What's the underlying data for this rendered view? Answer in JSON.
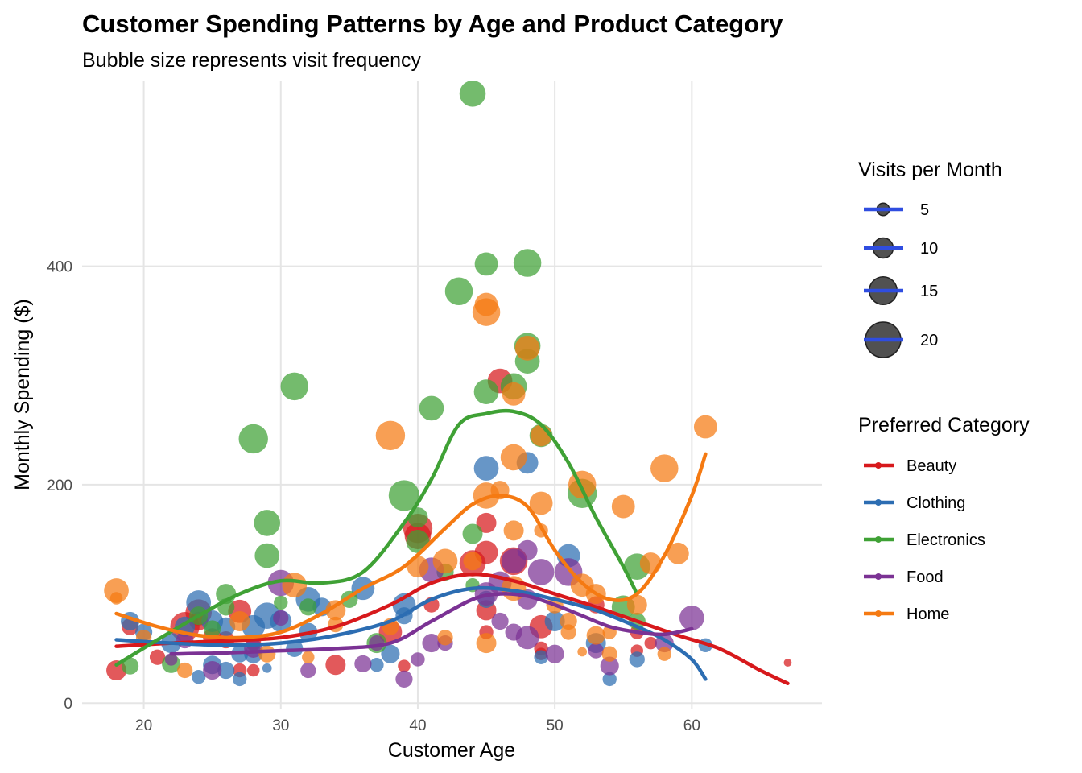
{
  "chart_data": {
    "type": "scatter",
    "title": "Customer Spending Patterns by Age and Product Category",
    "subtitle": "Bubble size represents visit frequency",
    "xlabel": "Customer Age",
    "ylabel": "Monthly Spending ($)",
    "xlim": [
      15.5,
      69.5
    ],
    "ylim": [
      -5,
      570
    ],
    "x_ticks": [
      20,
      30,
      40,
      50,
      60
    ],
    "y_ticks": [
      0,
      200,
      400
    ],
    "grid": true,
    "legend_position": "right",
    "size_legend": {
      "title": "Visits per Month",
      "entries": [
        {
          "label": "5",
          "value": 5
        },
        {
          "label": "10",
          "value": 10
        },
        {
          "label": "15",
          "value": 15
        },
        {
          "label": "20",
          "value": 20
        }
      ],
      "line_color": "#2f4de0"
    },
    "color_legend": {
      "title": "Preferred Category",
      "entries": [
        {
          "label": "Beauty",
          "color": "#d7191c"
        },
        {
          "label": "Clothing",
          "color": "#2c6db2"
        },
        {
          "label": "Electronics",
          "color": "#3fa135"
        },
        {
          "label": "Food",
          "color": "#7b3294"
        },
        {
          "label": "Home",
          "color": "#f57a12"
        }
      ]
    },
    "series": [
      {
        "name": "Beauty",
        "color": "#d7191c",
        "points": [
          [
            18,
            30,
            10
          ],
          [
            19,
            70,
            8
          ],
          [
            21,
            42,
            7
          ],
          [
            23,
            70,
            16
          ],
          [
            24,
            83,
            14
          ],
          [
            24,
            75,
            9
          ],
          [
            25,
            60,
            9
          ],
          [
            26,
            58,
            8
          ],
          [
            27,
            84,
            12
          ],
          [
            27,
            30,
            6
          ],
          [
            28,
            30,
            5
          ],
          [
            28,
            55,
            7
          ],
          [
            34,
            35,
            10
          ],
          [
            38,
            65,
            12
          ],
          [
            39,
            34,
            5
          ],
          [
            40,
            160,
            16
          ],
          [
            40,
            153,
            14
          ],
          [
            41,
            90,
            7
          ],
          [
            44,
            128,
            14
          ],
          [
            45,
            165,
            10
          ],
          [
            45,
            138,
            12
          ],
          [
            45,
            85,
            10
          ],
          [
            45,
            65,
            6
          ],
          [
            46,
            295,
            13
          ],
          [
            47,
            130,
            15
          ],
          [
            49,
            50,
            6
          ],
          [
            49,
            70,
            12
          ],
          [
            49,
            45,
            5
          ],
          [
            53,
            90,
            8
          ],
          [
            56,
            65,
            6
          ],
          [
            56,
            48,
            5
          ],
          [
            57,
            55,
            5
          ],
          [
            67,
            37,
            2
          ]
        ],
        "trend": [
          [
            18,
            52
          ],
          [
            22,
            55
          ],
          [
            26,
            57
          ],
          [
            30,
            60
          ],
          [
            34,
            70
          ],
          [
            38,
            90
          ],
          [
            41,
            110
          ],
          [
            44,
            118
          ],
          [
            47,
            112
          ],
          [
            50,
            100
          ],
          [
            53,
            88
          ],
          [
            56,
            75
          ],
          [
            59,
            62
          ],
          [
            62,
            50
          ],
          [
            65,
            30
          ],
          [
            67,
            18
          ]
        ]
      },
      {
        "name": "Clothing",
        "color": "#2c6db2",
        "points": [
          [
            19,
            75,
            9
          ],
          [
            20,
            65,
            8
          ],
          [
            22,
            55,
            10
          ],
          [
            23,
            70,
            10
          ],
          [
            24,
            92,
            13
          ],
          [
            24,
            24,
            6
          ],
          [
            25,
            75,
            11
          ],
          [
            25,
            35,
            9
          ],
          [
            26,
            30,
            8
          ],
          [
            26,
            70,
            9
          ],
          [
            27,
            22,
            6
          ],
          [
            27,
            45,
            8
          ],
          [
            28,
            45,
            9
          ],
          [
            28,
            70,
            12
          ],
          [
            29,
            80,
            14
          ],
          [
            29,
            32,
            3
          ],
          [
            30,
            75,
            11
          ],
          [
            31,
            50,
            8
          ],
          [
            32,
            95,
            13
          ],
          [
            32,
            65,
            9
          ],
          [
            33,
            88,
            9
          ],
          [
            36,
            105,
            12
          ],
          [
            37,
            35,
            6
          ],
          [
            38,
            45,
            9
          ],
          [
            39,
            90,
            12
          ],
          [
            39,
            80,
            8
          ],
          [
            45,
            215,
            13
          ],
          [
            45,
            95,
            8
          ],
          [
            48,
            220,
            11
          ],
          [
            49,
            42,
            6
          ],
          [
            50,
            75,
            10
          ],
          [
            51,
            135,
            12
          ],
          [
            53,
            55,
            10
          ],
          [
            54,
            22,
            6
          ],
          [
            56,
            40,
            7
          ],
          [
            61,
            53,
            6
          ]
        ],
        "trend": [
          [
            18,
            58
          ],
          [
            22,
            55
          ],
          [
            26,
            53
          ],
          [
            30,
            55
          ],
          [
            34,
            62
          ],
          [
            38,
            75
          ],
          [
            41,
            95
          ],
          [
            44,
            105
          ],
          [
            47,
            103
          ],
          [
            50,
            95
          ],
          [
            53,
            85
          ],
          [
            56,
            70
          ],
          [
            58,
            58
          ],
          [
            60,
            40
          ],
          [
            61,
            22
          ]
        ]
      },
      {
        "name": "Electronics",
        "color": "#3fa135",
        "points": [
          [
            19,
            34,
            8
          ],
          [
            22,
            36,
            9
          ],
          [
            24,
            80,
            9
          ],
          [
            25,
            68,
            8
          ],
          [
            26,
            100,
            10
          ],
          [
            26,
            88,
            8
          ],
          [
            28,
            242,
            16
          ],
          [
            29,
            165,
            14
          ],
          [
            29,
            135,
            13
          ],
          [
            30,
            92,
            6
          ],
          [
            31,
            290,
            15
          ],
          [
            32,
            88,
            8
          ],
          [
            35,
            95,
            8
          ],
          [
            37,
            55,
            10
          ],
          [
            39,
            190,
            17
          ],
          [
            40,
            170,
            10
          ],
          [
            40,
            148,
            12
          ],
          [
            41,
            270,
            13
          ],
          [
            42,
            120,
            8
          ],
          [
            43,
            377,
            15
          ],
          [
            44,
            155,
            10
          ],
          [
            44,
            108,
            6
          ],
          [
            44,
            558,
            14
          ],
          [
            45,
            285,
            13
          ],
          [
            45,
            402,
            12
          ],
          [
            47,
            290,
            14
          ],
          [
            48,
            403,
            15
          ],
          [
            48,
            327,
            14
          ],
          [
            48,
            313,
            13
          ],
          [
            49,
            245,
            12
          ],
          [
            52,
            192,
            16
          ],
          [
            55,
            88,
            12
          ],
          [
            56,
            125,
            14
          ],
          [
            56,
            75,
            8
          ]
        ],
        "trend": [
          [
            18,
            35
          ],
          [
            21,
            58
          ],
          [
            24,
            80
          ],
          [
            27,
            100
          ],
          [
            30,
            112
          ],
          [
            33,
            110
          ],
          [
            36,
            120
          ],
          [
            39,
            165
          ],
          [
            41,
            205
          ],
          [
            43,
            255
          ],
          [
            45,
            265
          ],
          [
            47,
            267
          ],
          [
            49,
            255
          ],
          [
            51,
            220
          ],
          [
            53,
            170
          ],
          [
            55,
            125
          ],
          [
            56,
            100
          ]
        ]
      },
      {
        "name": "Food",
        "color": "#7b3294",
        "points": [
          [
            22,
            40,
            5
          ],
          [
            23,
            58,
            8
          ],
          [
            25,
            30,
            9
          ],
          [
            28,
            50,
            9
          ],
          [
            30,
            110,
            14
          ],
          [
            30,
            78,
            7
          ],
          [
            32,
            30,
            7
          ],
          [
            36,
            36,
            8
          ],
          [
            37,
            55,
            7
          ],
          [
            39,
            22,
            8
          ],
          [
            40,
            40,
            6
          ],
          [
            41,
            55,
            9
          ],
          [
            41,
            122,
            13
          ],
          [
            42,
            55,
            7
          ],
          [
            45,
            100,
            12
          ],
          [
            46,
            110,
            12
          ],
          [
            46,
            75,
            8
          ],
          [
            47,
            65,
            8
          ],
          [
            47,
            130,
            13
          ],
          [
            48,
            140,
            10
          ],
          [
            48,
            95,
            10
          ],
          [
            48,
            60,
            12
          ],
          [
            49,
            120,
            14
          ],
          [
            50,
            45,
            9
          ],
          [
            51,
            120,
            15
          ],
          [
            53,
            48,
            7
          ],
          [
            54,
            34,
            9
          ],
          [
            58,
            55,
            9
          ],
          [
            60,
            78,
            13
          ]
        ],
        "trend": [
          [
            22,
            45
          ],
          [
            26,
            46
          ],
          [
            30,
            48
          ],
          [
            34,
            50
          ],
          [
            38,
            55
          ],
          [
            41,
            75
          ],
          [
            44,
            95
          ],
          [
            46,
            100
          ],
          [
            48,
            98
          ],
          [
            50,
            90
          ],
          [
            52,
            80
          ],
          [
            54,
            70
          ],
          [
            56,
            65
          ],
          [
            58,
            63
          ],
          [
            60,
            68
          ]
        ]
      },
      {
        "name": "Home",
        "color": "#f57a12",
        "points": [
          [
            18,
            103,
            13
          ],
          [
            18,
            96,
            5
          ],
          [
            20,
            60,
            7
          ],
          [
            23,
            30,
            7
          ],
          [
            27,
            75,
            10
          ],
          [
            29,
            45,
            8
          ],
          [
            31,
            108,
            13
          ],
          [
            32,
            42,
            5
          ],
          [
            34,
            85,
            10
          ],
          [
            34,
            72,
            7
          ],
          [
            38,
            245,
            16
          ],
          [
            38,
            70,
            8
          ],
          [
            40,
            125,
            11
          ],
          [
            42,
            130,
            13
          ],
          [
            42,
            60,
            7
          ],
          [
            44,
            130,
            9
          ],
          [
            45,
            358,
            15
          ],
          [
            45,
            365,
            12
          ],
          [
            45,
            190,
            14
          ],
          [
            45,
            55,
            10
          ],
          [
            46,
            195,
            9
          ],
          [
            47,
            225,
            14
          ],
          [
            47,
            283,
            12
          ],
          [
            47,
            158,
            10
          ],
          [
            47,
            105,
            13
          ],
          [
            48,
            325,
            13
          ],
          [
            49,
            183,
            12
          ],
          [
            49,
            245,
            11
          ],
          [
            49,
            158,
            6
          ],
          [
            50,
            90,
            8
          ],
          [
            51,
            75,
            8
          ],
          [
            51,
            65,
            7
          ],
          [
            52,
            200,
            15
          ],
          [
            52,
            108,
            12
          ],
          [
            52,
            47,
            3
          ],
          [
            53,
            100,
            10
          ],
          [
            53,
            62,
            9
          ],
          [
            54,
            65,
            6
          ],
          [
            54,
            45,
            7
          ],
          [
            55,
            180,
            12
          ],
          [
            56,
            90,
            10
          ],
          [
            57,
            128,
            11
          ],
          [
            58,
            215,
            15
          ],
          [
            58,
            45,
            6
          ],
          [
            59,
            137,
            11
          ],
          [
            61,
            253,
            12
          ]
        ],
        "trend": [
          [
            18,
            82
          ],
          [
            21,
            70
          ],
          [
            24,
            62
          ],
          [
            27,
            60
          ],
          [
            30,
            65
          ],
          [
            33,
            82
          ],
          [
            36,
            105
          ],
          [
            39,
            125
          ],
          [
            42,
            160
          ],
          [
            44,
            182
          ],
          [
            46,
            190
          ],
          [
            48,
            180
          ],
          [
            50,
            140
          ],
          [
            52,
            110
          ],
          [
            54,
            95
          ],
          [
            56,
            100
          ],
          [
            58,
            135
          ],
          [
            60,
            190
          ],
          [
            61,
            228
          ]
        ]
      }
    ]
  }
}
